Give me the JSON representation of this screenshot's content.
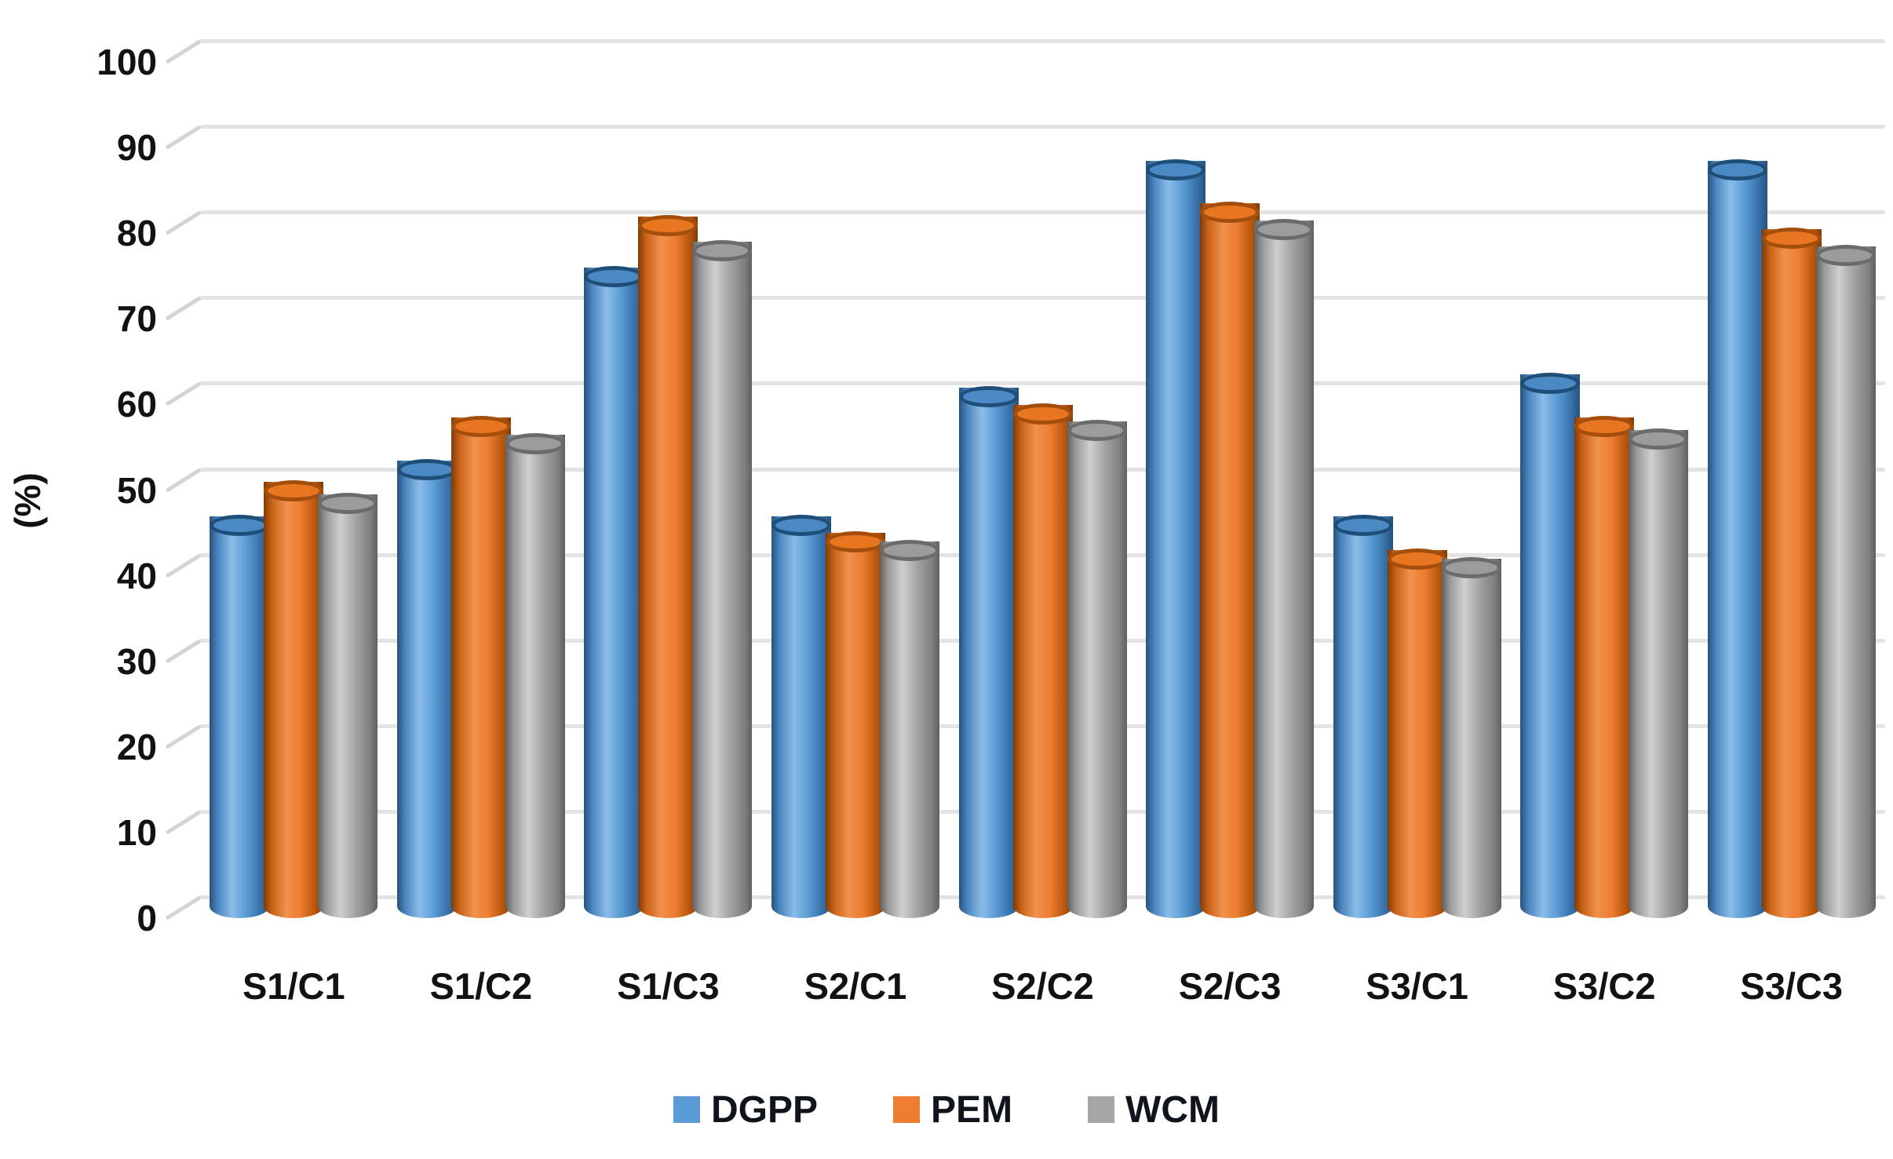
{
  "chart_data": {
    "type": "bar",
    "bar_style": "3d-cylinder",
    "title": "",
    "xlabel": "",
    "ylabel": "(%)",
    "ylim": [
      0,
      100
    ],
    "ytick_step": 10,
    "yticks": [
      100,
      90,
      80,
      70,
      60,
      50,
      40,
      30,
      20,
      10,
      0
    ],
    "grid": true,
    "legend_position": "bottom",
    "categories": [
      "S1/C1",
      "S1/C2",
      "S1/C3",
      "S2/C1",
      "S2/C2",
      "S2/C3",
      "S3/C1",
      "S3/C2",
      "S3/C3"
    ],
    "series": [
      {
        "name": "DGPP",
        "color": "#5B9BD5",
        "values": [
          44.5,
          51,
          73.5,
          44.5,
          59.5,
          86,
          44.5,
          61,
          86
        ]
      },
      {
        "name": "PEM",
        "color": "#ED7D31",
        "values": [
          48.5,
          56,
          79.5,
          42.5,
          57.5,
          81,
          40.5,
          56,
          78
        ]
      },
      {
        "name": "WCM",
        "color": "#A5A5A5",
        "values": [
          47,
          54,
          76.5,
          41.5,
          55.5,
          79,
          39.5,
          54.5,
          76
        ]
      }
    ]
  },
  "legend": {
    "items": [
      {
        "label": "DGPP",
        "color": "#5B9BD5"
      },
      {
        "label": "PEM",
        "color": "#ED7D31"
      },
      {
        "label": "WCM",
        "color": "#A5A5A5"
      }
    ]
  },
  "text_color": "#121212"
}
